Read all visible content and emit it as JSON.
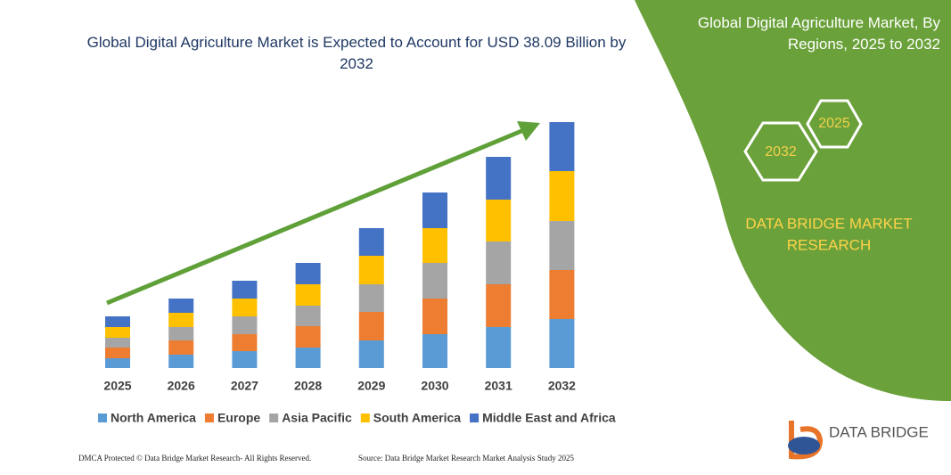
{
  "chart_data": {
    "type": "stacked_bar",
    "title": "Global Digital Agriculture Market is Expected to Account for USD 38.09 Billion by 2032",
    "categories": [
      "2025",
      "2026",
      "2027",
      "2028",
      "2029",
      "2030",
      "2031",
      "2032"
    ],
    "series": [
      {
        "name": "North America",
        "color": "#5b9bd5",
        "values": [
          11,
          15,
          19,
          23,
          31,
          38,
          46,
          55
        ]
      },
      {
        "name": "Europe",
        "color": "#ed7d31",
        "values": [
          12,
          16,
          19,
          24,
          32,
          40,
          48,
          55
        ]
      },
      {
        "name": "Asia Pacific",
        "color": "#a5a5a5",
        "values": [
          11,
          15,
          20,
          23,
          31,
          40,
          48,
          55
        ]
      },
      {
        "name": "South America",
        "color": "#ffc000",
        "values": [
          12,
          16,
          20,
          24,
          32,
          39,
          47,
          56
        ]
      },
      {
        "name": "Middle East and Africa",
        "color": "#4472c4",
        "values": [
          12,
          16,
          20,
          24,
          31,
          40,
          48,
          55
        ]
      }
    ]
  },
  "panel": {
    "title": "Global Digital Agriculture Market, By Regions, 2025 to 2032",
    "hex_back": "2025",
    "hex_front": "2032",
    "brand_lines": [
      "DATA BRIDGE MARKET",
      "RESEARCH"
    ]
  },
  "logo": {
    "text": "DATA BRIDGE"
  },
  "footer": {
    "left": "DMCA Protected © Data Bridge Market Research-  All Rights Reserved.",
    "right": "Source: Data Bridge Market Research  Market Analysis Study 2025"
  }
}
